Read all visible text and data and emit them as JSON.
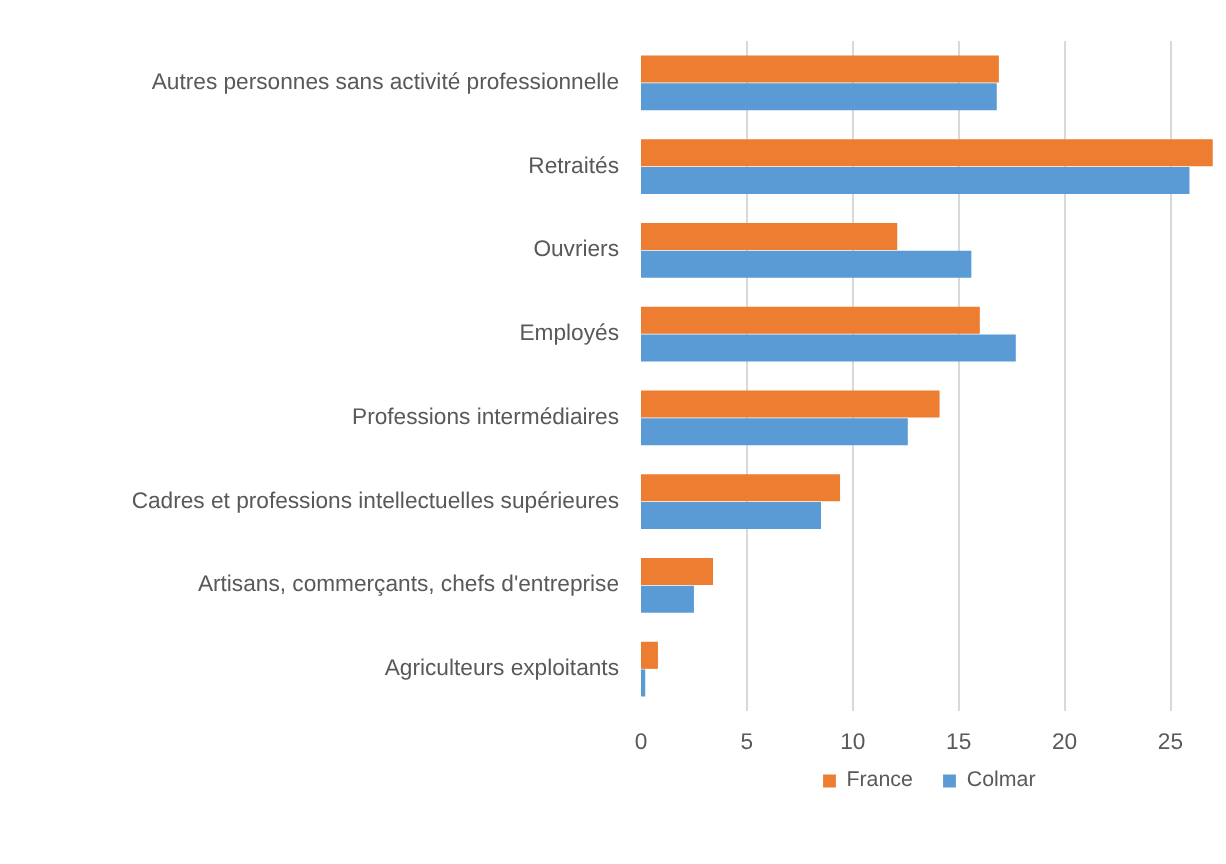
{
  "chart_data": {
    "type": "bar",
    "orientation": "horizontal",
    "categories": [
      "Autres personnes sans activité professionnelle",
      "Retraités",
      "Ouvriers",
      "Employés",
      "Professions intermédiaires",
      "Cadres et professions intellectuelles supérieures",
      "Artisans, commerçants, chefs d'entreprise",
      "Agriculteurs exploitants"
    ],
    "series": [
      {
        "name": "France",
        "color": "#ed7d31",
        "values": [
          16.9,
          27.0,
          12.1,
          16.0,
          14.1,
          9.4,
          3.4,
          0.8
        ]
      },
      {
        "name": "Colmar",
        "color": "#5b9bd5",
        "values": [
          16.8,
          25.9,
          15.6,
          17.7,
          12.6,
          8.5,
          2.5,
          0.2
        ]
      }
    ],
    "xlim": [
      0,
      27.2
    ],
    "xticks": [
      0,
      5,
      10,
      15,
      20,
      25
    ],
    "grid": "x",
    "legend": "bottom"
  }
}
